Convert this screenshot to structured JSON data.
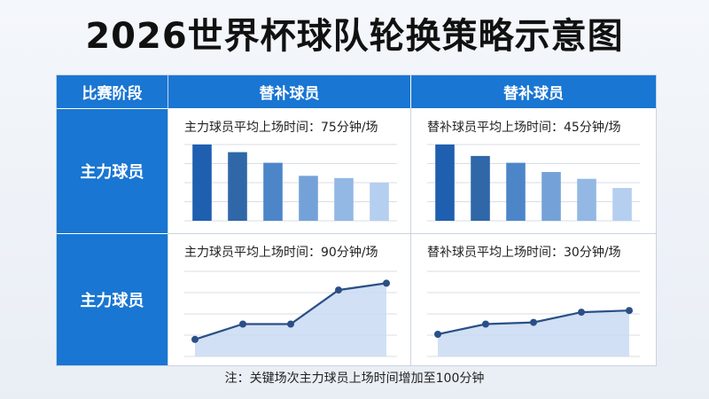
{
  "title": "2026世界杯球队轮换策略示意图",
  "header": {
    "stage": "比赛阶段",
    "col1": "替补球员",
    "col2": "替补球员"
  },
  "rows": [
    "主力球员",
    "主力球员"
  ],
  "panels": {
    "p11": "主力球员平均上场时间：75分钟/场",
    "p12": "替补球员平均上场时间：45分钟/场",
    "p21": "主力球员平均上场时间：90分钟/场",
    "p22": "替补球员平均上场时间：30分钟/场"
  },
  "note": "注：关键场次主力球员上场时间增加至100分钟",
  "colors": {
    "header": "#1976d2",
    "bar_shades": [
      "#1f5fb0",
      "#2f67a8",
      "#4c86c9",
      "#74a2d8",
      "#93b8e3",
      "#b5cff0"
    ],
    "line": "#2a4f86",
    "area": "#c9dbf2"
  },
  "chart_data": [
    {
      "type": "bar",
      "categories": [
        "",
        "",
        "",
        "",
        "",
        ""
      ],
      "values": [
        100,
        90,
        76,
        59,
        56,
        50
      ],
      "ylim": [
        0,
        100
      ],
      "grid": true
    },
    {
      "type": "bar",
      "categories": [
        "",
        "",
        "",
        "",
        "",
        ""
      ],
      "values": [
        100,
        85,
        76,
        64,
        55,
        43
      ],
      "ylim": [
        0,
        100
      ],
      "grid": true
    },
    {
      "type": "area",
      "x": [
        1,
        2,
        3,
        4,
        5
      ],
      "values": [
        20,
        38,
        38,
        78,
        86
      ],
      "ylim": [
        0,
        100
      ],
      "grid": true
    },
    {
      "type": "area",
      "x": [
        1,
        2,
        3,
        4,
        5
      ],
      "values": [
        26,
        38,
        40,
        52,
        54
      ],
      "ylim": [
        0,
        100
      ],
      "grid": true
    }
  ]
}
